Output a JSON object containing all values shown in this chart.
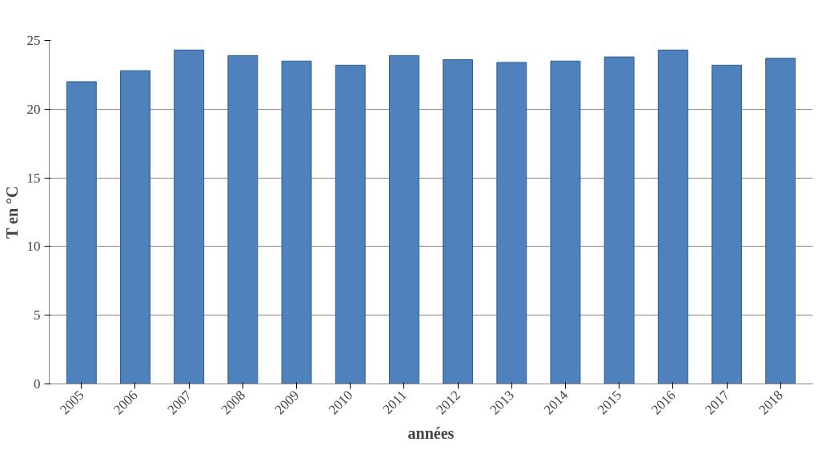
{
  "chart_data": {
    "type": "bar",
    "xlabel": "années",
    "ylabel": "T en °C",
    "categories": [
      "2005",
      "2006",
      "2007",
      "2008",
      "2009",
      "2010",
      "2011",
      "2012",
      "2013",
      "2014",
      "2015",
      "2016",
      "2017",
      "2018"
    ],
    "series": [
      {
        "color": "#4f81bd",
        "values": [
          22.0,
          22.8,
          24.3,
          23.9,
          23.5,
          23.2,
          23.9,
          23.6,
          23.4,
          23.5,
          23.8,
          24.3,
          23.2,
          23.7
        ]
      }
    ],
    "ylim": [
      0,
      25
    ],
    "yticks": [
      0,
      5,
      10,
      15,
      20,
      25
    ],
    "grid": "y"
  }
}
